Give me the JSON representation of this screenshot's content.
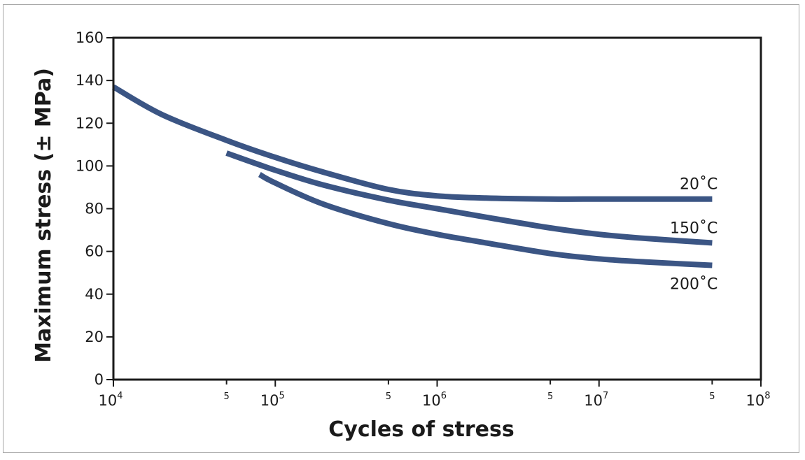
{
  "chart_data": {
    "type": "line",
    "xlabel": "Cycles of stress",
    "ylabel": "Maximum stress (± MPa)",
    "x_scale": "log",
    "xlim": [
      10000,
      100000000
    ],
    "ylim": [
      0,
      160
    ],
    "y_ticks": [
      0,
      20,
      40,
      60,
      80,
      100,
      120,
      140,
      160
    ],
    "x_major_ticks": [
      {
        "value": 10000,
        "base": "10",
        "exp": "4"
      },
      {
        "value": 100000,
        "base": "10",
        "exp": "5"
      },
      {
        "value": 1000000,
        "base": "10",
        "exp": "6"
      },
      {
        "value": 10000000,
        "base": "10",
        "exp": "7"
      },
      {
        "value": 100000000,
        "base": "10",
        "exp": "8"
      }
    ],
    "x_minor_ticks": [
      {
        "value": 50000,
        "label": "5"
      },
      {
        "value": 500000,
        "label": "5"
      },
      {
        "value": 5000000,
        "label": "5"
      },
      {
        "value": 50000000,
        "label": "5"
      }
    ],
    "grid": false,
    "legend": "none",
    "line_color": "#3b5584",
    "series": [
      {
        "name": "20˚C",
        "points": [
          [
            10000,
            137
          ],
          [
            20000,
            124
          ],
          [
            50000,
            112
          ],
          [
            100000,
            104
          ],
          [
            200000,
            97
          ],
          [
            500000,
            89
          ],
          [
            1000000,
            86
          ],
          [
            2000000,
            85
          ],
          [
            5000000,
            84.5
          ],
          [
            10000000,
            84.5
          ],
          [
            20000000,
            84.5
          ],
          [
            50000000,
            84.5
          ]
        ]
      },
      {
        "name": "150˚C",
        "points": [
          [
            50000,
            106
          ],
          [
            100000,
            98
          ],
          [
            200000,
            91
          ],
          [
            500000,
            84
          ],
          [
            1000000,
            80
          ],
          [
            2000000,
            76
          ],
          [
            5000000,
            71
          ],
          [
            10000000,
            68
          ],
          [
            20000000,
            66
          ],
          [
            50000000,
            64
          ]
        ]
      },
      {
        "name": "200˚C",
        "points": [
          [
            80000,
            96
          ],
          [
            100000,
            92
          ],
          [
            200000,
            82
          ],
          [
            500000,
            73
          ],
          [
            1000000,
            68
          ],
          [
            2000000,
            64
          ],
          [
            5000000,
            59
          ],
          [
            10000000,
            56.5
          ],
          [
            20000000,
            55
          ],
          [
            50000000,
            53.5
          ]
        ]
      }
    ]
  }
}
